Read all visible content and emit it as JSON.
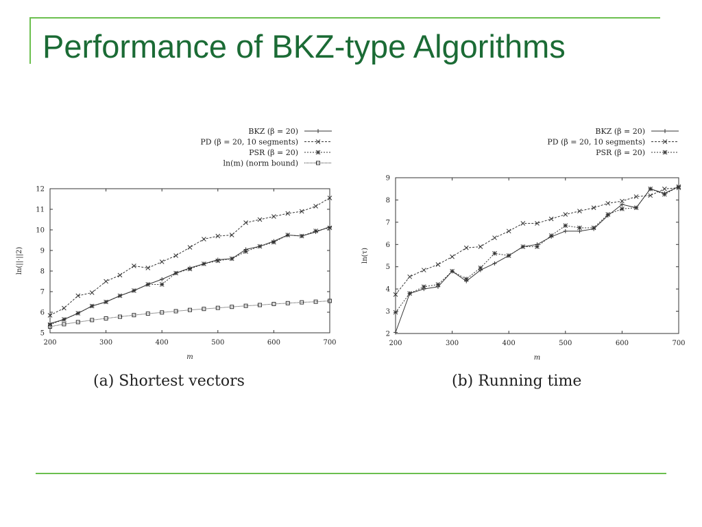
{
  "slide": {
    "title": "Performance of BKZ-type Algorithms",
    "accent_color": "#1b6b35",
    "rule_color": "#6bbf4e"
  },
  "chart_data": [
    {
      "type": "line",
      "caption": "(a) Shortest vectors",
      "xlabel": "m",
      "ylabel": "ln(||·||2)",
      "xlim": [
        200,
        700
      ],
      "ylim": [
        5,
        12
      ],
      "xticks": [
        200,
        300,
        400,
        500,
        600,
        700
      ],
      "yticks": [
        5,
        6,
        7,
        8,
        9,
        10,
        11,
        12
      ],
      "legend_position": "top-right",
      "x": [
        200,
        225,
        250,
        275,
        300,
        325,
        350,
        375,
        400,
        425,
        450,
        475,
        500,
        525,
        550,
        575,
        600,
        625,
        650,
        675,
        700
      ],
      "series": [
        {
          "name": "BKZ (β = 20)",
          "marker": "+",
          "dash": "",
          "values": [
            5.45,
            5.65,
            5.95,
            6.3,
            6.5,
            6.8,
            7.05,
            7.35,
            7.6,
            7.9,
            8.15,
            8.35,
            8.55,
            8.6,
            9.05,
            9.2,
            9.45,
            9.75,
            9.7,
            9.9,
            10.15
          ]
        },
        {
          "name": "PD (β = 20, 10 segments)",
          "marker": "x",
          "dash": "3,2",
          "values": [
            5.85,
            6.2,
            6.8,
            6.95,
            7.5,
            7.8,
            8.25,
            8.15,
            8.45,
            8.75,
            9.15,
            9.55,
            9.7,
            9.75,
            10.35,
            10.5,
            10.65,
            10.8,
            10.9,
            11.15,
            11.55
          ]
        },
        {
          "name": "PSR (β = 20)",
          "marker": "*",
          "dash": "2,2",
          "values": [
            5.4,
            5.65,
            5.95,
            6.3,
            6.5,
            6.8,
            7.05,
            7.35,
            7.35,
            7.9,
            8.1,
            8.35,
            8.5,
            8.6,
            8.95,
            9.2,
            9.4,
            9.75,
            9.7,
            9.95,
            10.1
          ]
        },
        {
          "name": "ln(m) (norm bound)",
          "marker": "square",
          "dash": "1,1",
          "values": [
            5.3,
            5.42,
            5.52,
            5.62,
            5.7,
            5.78,
            5.86,
            5.93,
            5.99,
            6.05,
            6.11,
            6.16,
            6.21,
            6.26,
            6.31,
            6.35,
            6.4,
            6.44,
            6.48,
            6.51,
            6.55
          ]
        }
      ]
    },
    {
      "type": "line",
      "caption": "(b) Running time",
      "xlabel": "m",
      "ylabel": "ln(τ)",
      "xlim": [
        200,
        700
      ],
      "ylim": [
        2,
        9
      ],
      "xticks": [
        200,
        300,
        400,
        500,
        600,
        700
      ],
      "yticks": [
        2,
        3,
        4,
        5,
        6,
        7,
        8,
        9
      ],
      "legend_position": "top-right",
      "x": [
        200,
        225,
        250,
        275,
        300,
        325,
        350,
        375,
        400,
        425,
        450,
        475,
        500,
        525,
        550,
        575,
        600,
        625,
        650,
        675,
        700
      ],
      "series": [
        {
          "name": "BKZ (β = 20)",
          "marker": "+",
          "dash": "",
          "values": [
            2.05,
            3.8,
            4.0,
            4.1,
            4.8,
            4.35,
            4.85,
            5.15,
            5.5,
            5.9,
            6.0,
            6.35,
            6.6,
            6.6,
            6.7,
            7.3,
            7.8,
            7.65,
            8.5,
            8.3,
            8.6
          ]
        },
        {
          "name": "PD (β = 20, 10 segments)",
          "marker": "x",
          "dash": "3,2",
          "values": [
            3.75,
            4.55,
            4.85,
            5.1,
            5.45,
            5.85,
            5.9,
            6.3,
            6.6,
            6.95,
            6.95,
            7.15,
            7.35,
            7.5,
            7.65,
            7.85,
            7.95,
            8.15,
            8.2,
            8.5,
            8.55
          ]
        },
        {
          "name": "PSR (β = 20)",
          "marker": "*",
          "dash": "2,2",
          "values": [
            2.95,
            3.8,
            4.1,
            4.2,
            4.8,
            4.45,
            4.95,
            5.6,
            5.5,
            5.9,
            5.9,
            6.4,
            6.85,
            6.75,
            6.75,
            7.35,
            7.6,
            7.65,
            8.5,
            8.25,
            8.6
          ]
        }
      ]
    }
  ]
}
